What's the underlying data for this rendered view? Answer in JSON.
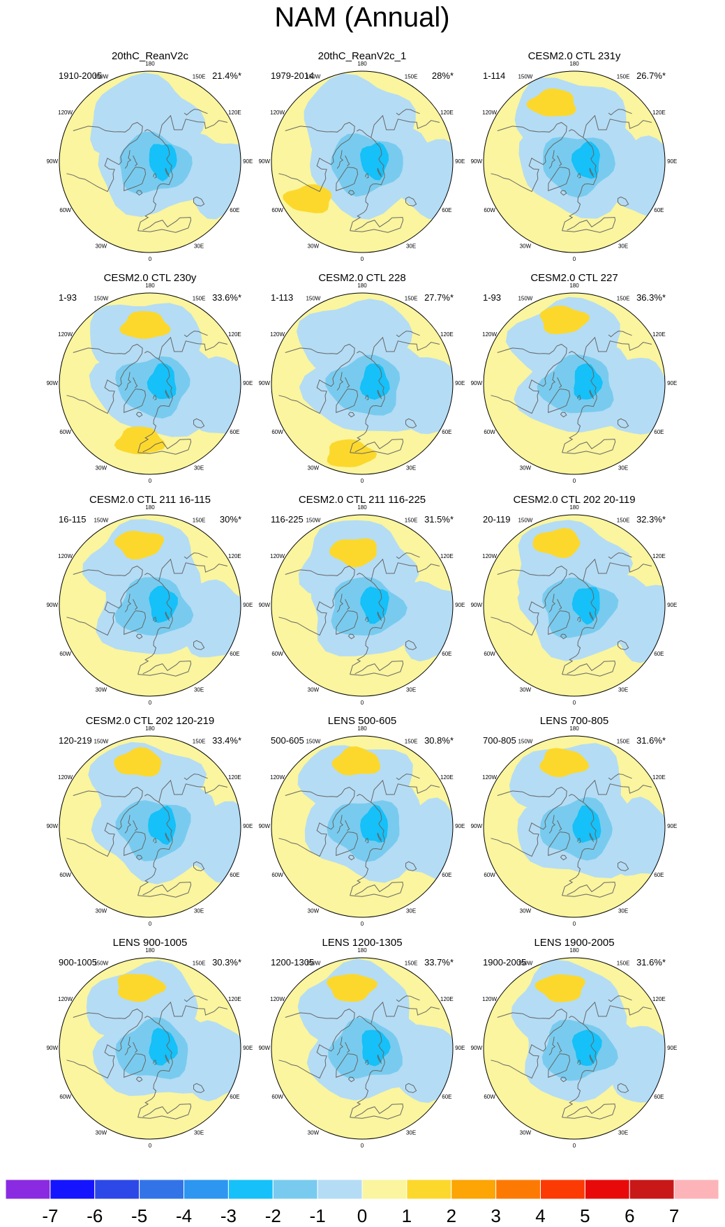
{
  "chart_data": {
    "type": "map-panel-grid",
    "title": "NAM (Annual)",
    "projection": "north polar stereographic",
    "longitude_labels": [
      "180",
      "150E",
      "120E",
      "90E",
      "60E",
      "30E",
      "0",
      "30W",
      "60W",
      "90W",
      "120W",
      "150W"
    ],
    "panels": [
      {
        "title": "20thC_ReanV2c",
        "period": "1910-2005",
        "variance": "21.4%*",
        "pos_centers": []
      },
      {
        "title": "20thC_ReanV2c_1",
        "period": "1979-2014",
        "variance": "28%*",
        "pos_centers": [
          {
            "lon": -55,
            "lat": 40,
            "value": 1
          }
        ]
      },
      {
        "title": "CESM2.0 CTL 231y",
        "period": "1-114",
        "variance": "26.7%*",
        "pos_centers": [
          {
            "lon": -160,
            "lat": 42,
            "value": 1
          }
        ]
      },
      {
        "title": "CESM2.0 CTL 230y",
        "period": "1-93",
        "variance": "33.6%*",
        "pos_centers": [
          {
            "lon": -175,
            "lat": 45,
            "value": 1
          },
          {
            "lon": -10,
            "lat": 45,
            "value": 1
          }
        ]
      },
      {
        "title": "CESM2.0 CTL 228",
        "period": "1-113",
        "variance": "27.7%*",
        "pos_centers": [
          {
            "lon": -10,
            "lat": 35,
            "value": 1
          }
        ]
      },
      {
        "title": "CESM2.0 CTL 227",
        "period": "1-93",
        "variance": "36.3%*",
        "pos_centers": [
          {
            "lon": -170,
            "lat": 40,
            "value": 1
          }
        ]
      },
      {
        "title": "CESM2.0 CTL 211 16-115",
        "period": "16-115",
        "variance": "30%*",
        "pos_centers": [
          {
            "lon": -170,
            "lat": 42,
            "value": 1
          }
        ]
      },
      {
        "title": "CESM2.0 CTL 211 116-225",
        "period": "116-225",
        "variance": "31.5%*",
        "pos_centers": [
          {
            "lon": -172,
            "lat": 48,
            "value": 1
          }
        ]
      },
      {
        "title": "CESM2.0 CTL 202 20-119",
        "period": "20-119",
        "variance": "32.3%*",
        "pos_centers": [
          {
            "lon": -165,
            "lat": 40,
            "value": 1
          }
        ]
      },
      {
        "title": "CESM2.0 CTL 202 120-219",
        "period": "120-219",
        "variance": "33.4%*",
        "pos_centers": [
          {
            "lon": -170,
            "lat": 40,
            "value": 1
          }
        ]
      },
      {
        "title": "LENS 500-605",
        "period": "500-605",
        "variance": "30.8%*",
        "pos_centers": [
          {
            "lon": -175,
            "lat": 40,
            "value": 1
          }
        ]
      },
      {
        "title": "LENS 700-805",
        "period": "700-805",
        "variance": "31.6%*",
        "pos_centers": [
          {
            "lon": -170,
            "lat": 40,
            "value": 1
          }
        ]
      },
      {
        "title": "LENS 900-1005",
        "period": "900-1005",
        "variance": "30.3%*",
        "pos_centers": [
          {
            "lon": -170,
            "lat": 42,
            "value": 1
          }
        ]
      },
      {
        "title": "LENS 1200-1305",
        "period": "1200-1305",
        "variance": "33.7%*",
        "pos_centers": [
          {
            "lon": -170,
            "lat": 42,
            "value": 1
          }
        ]
      },
      {
        "title": "LENS 1900-2005",
        "period": "1900-2005",
        "variance": "31.6%*",
        "pos_centers": [
          {
            "lon": -168,
            "lat": 42,
            "value": 1
          }
        ]
      }
    ],
    "colorbar": {
      "labels": [
        "-7",
        "-6",
        "-5",
        "-4",
        "-3",
        "-2",
        "-1",
        "0",
        "1",
        "2",
        "3",
        "4",
        "5",
        "6",
        "7"
      ],
      "colors": [
        "#8A2BE2",
        "#1414FF",
        "#2C48E6",
        "#3274E8",
        "#2D96F0",
        "#16C0F8",
        "#78CBEE",
        "#B4DCF5",
        "#FAF59E",
        "#FCD82C",
        "#FCA505",
        "#FC7A04",
        "#FC3A04",
        "#E80A0A",
        "#C81818",
        "#FCB4B8"
      ]
    },
    "fill_colors": {
      "land_background": "#FAF59E",
      "neg1": "#B4DCF5",
      "neg2": "#78CBEE",
      "neg3": "#16C0F8",
      "pos1": "#FCD82C",
      "coast": "#666666"
    }
  }
}
